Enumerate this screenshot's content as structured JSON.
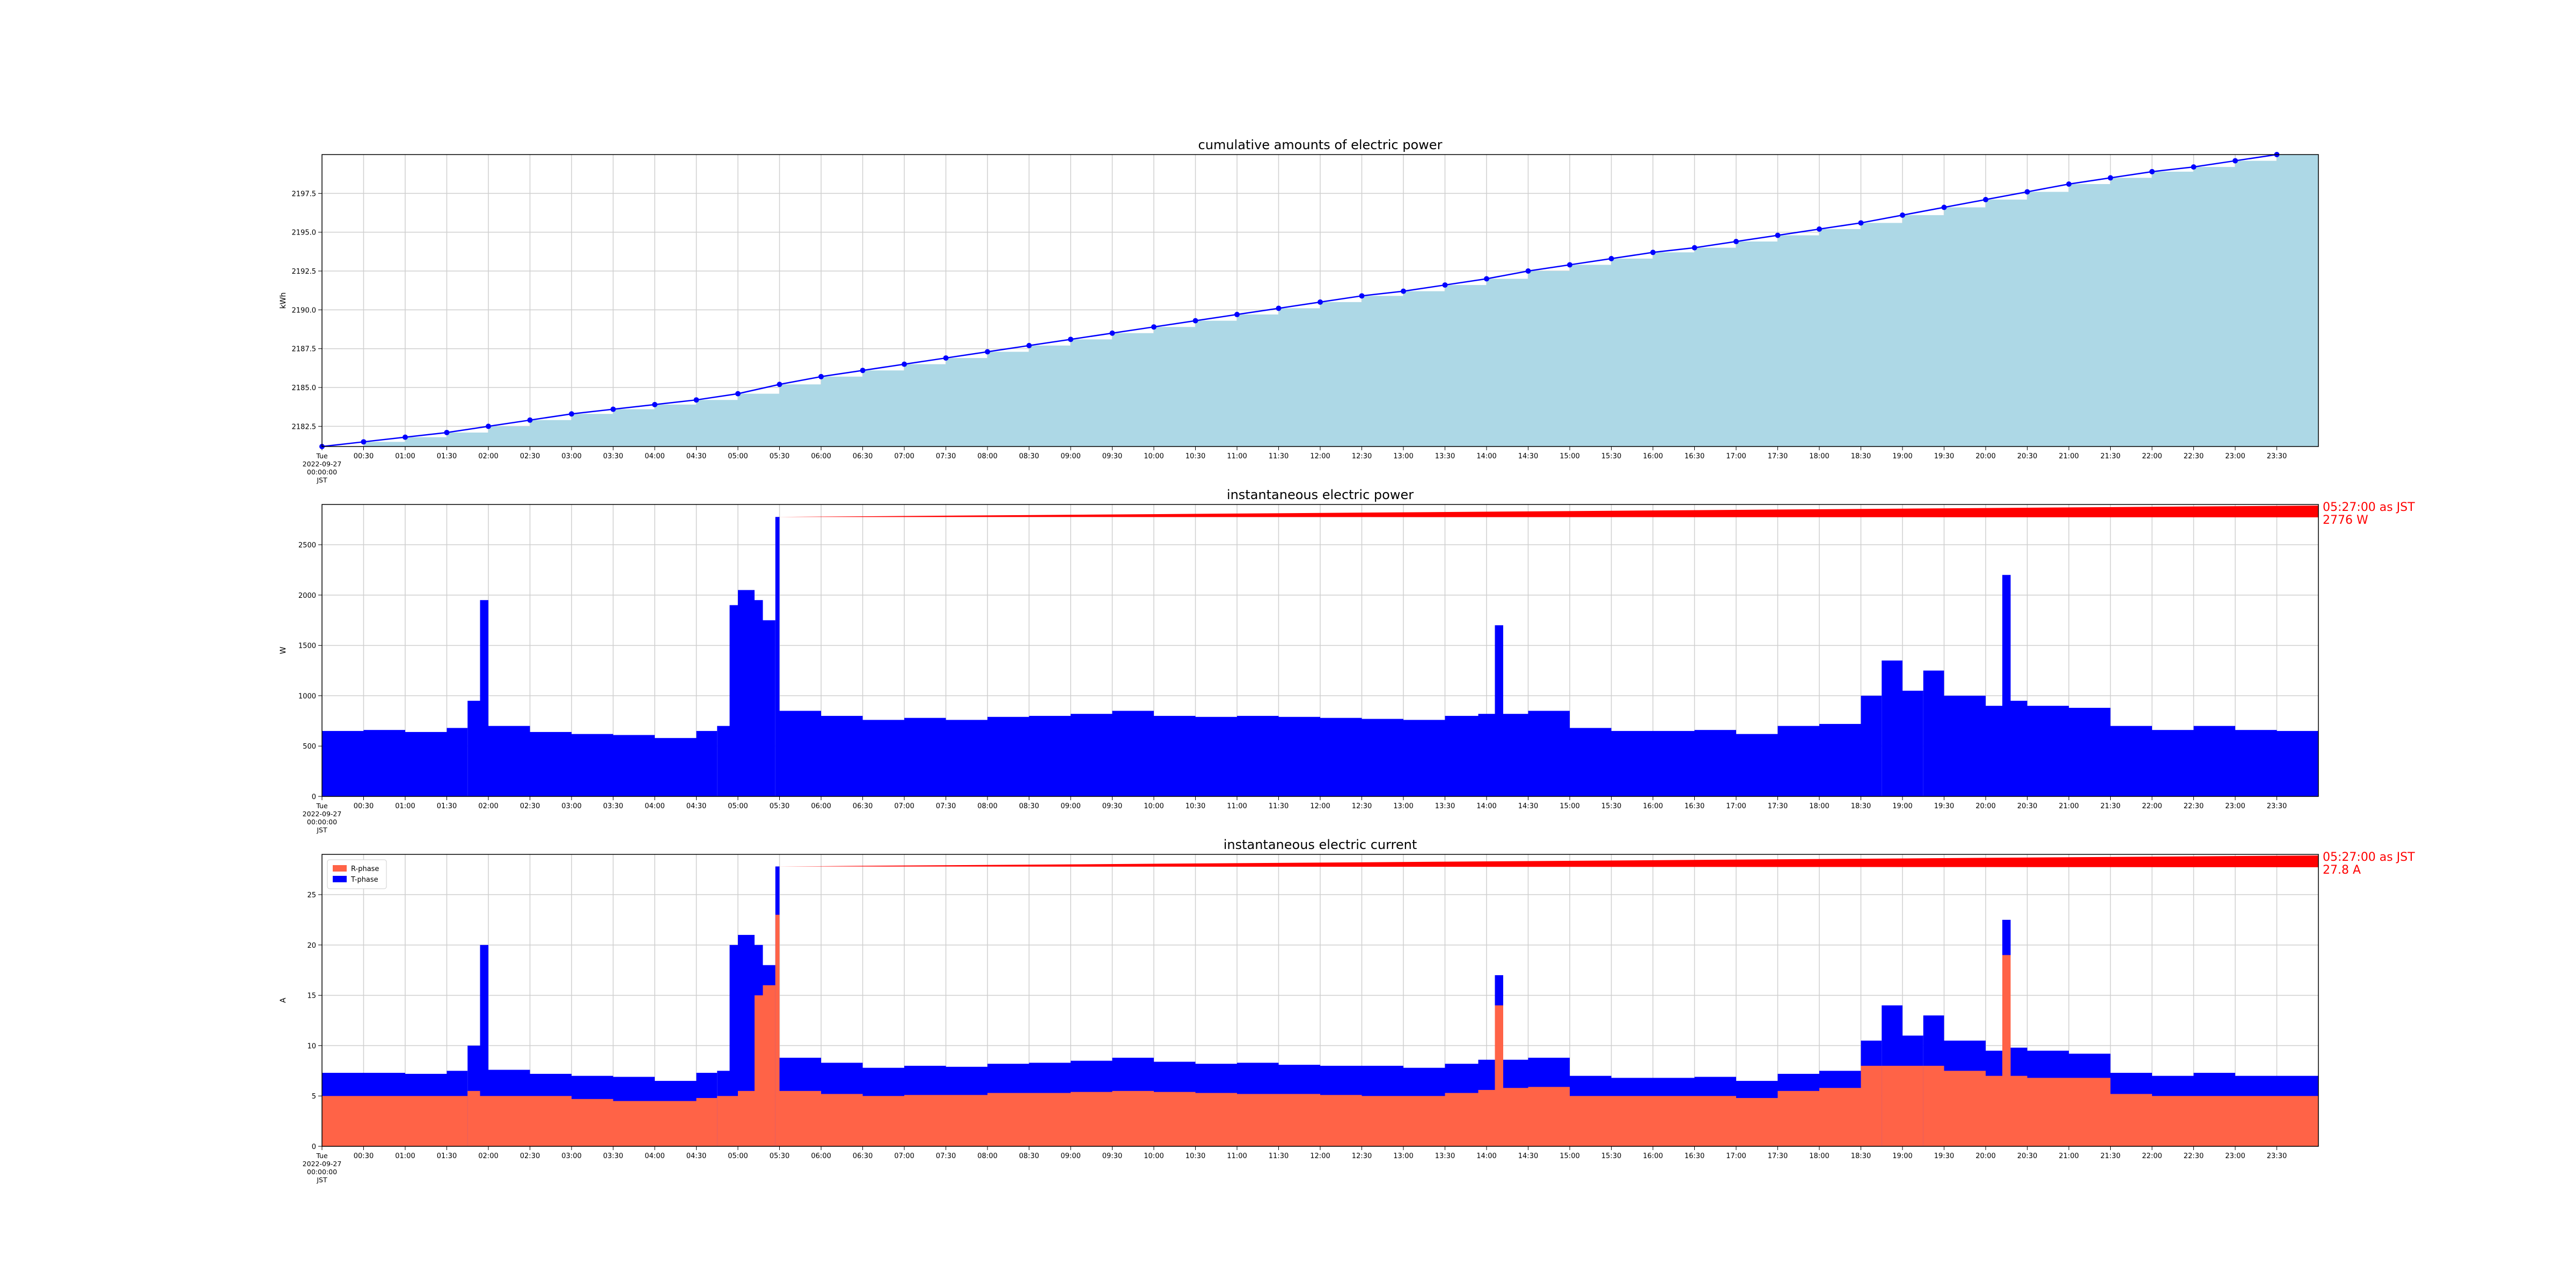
{
  "chart_data": [
    {
      "type": "area",
      "title": "cumulative amounts of electric power",
      "xlabel": "",
      "ylabel": "kWh",
      "x_first_tick": [
        "Tue",
        "2022-09-27",
        "00:00:00",
        "JST"
      ],
      "x_ticks": [
        "00:30",
        "01:00",
        "01:30",
        "02:00",
        "02:30",
        "03:00",
        "03:30",
        "04:00",
        "04:30",
        "05:00",
        "05:30",
        "06:00",
        "06:30",
        "07:00",
        "07:30",
        "08:00",
        "08:30",
        "09:00",
        "09:30",
        "10:00",
        "10:30",
        "11:00",
        "11:30",
        "12:00",
        "12:30",
        "13:00",
        "13:30",
        "14:00",
        "14:30",
        "15:00",
        "15:30",
        "16:00",
        "16:30",
        "17:00",
        "17:30",
        "18:00",
        "18:30",
        "19:00",
        "19:30",
        "20:00",
        "20:30",
        "21:00",
        "21:30",
        "22:00",
        "22:30",
        "23:00",
        "23:30"
      ],
      "xlim_hours": [
        0,
        24
      ],
      "y_ticks": [
        "2182.5",
        "2185.0",
        "2187.5",
        "2190.0",
        "2192.5",
        "2195.0",
        "2197.5"
      ],
      "ylim": [
        2181.2,
        2200.0
      ],
      "grid": true,
      "fill_color": "#add8e6",
      "line_color": "#0000ff",
      "series": [
        {
          "x_hours": [
            0.0,
            0.5,
            1.0,
            1.5,
            2.0,
            2.5,
            3.0,
            3.5,
            4.0,
            4.5,
            5.0,
            5.5,
            6.0,
            6.5,
            7.0,
            7.5,
            8.0,
            8.5,
            9.0,
            9.5,
            10.0,
            10.5,
            11.0,
            11.5,
            12.0,
            12.5,
            13.0,
            13.5,
            14.0,
            14.5,
            15.0,
            15.5,
            16.0,
            16.5,
            17.0,
            17.5,
            18.0,
            18.5,
            19.0,
            19.5,
            20.0,
            20.5,
            21.0,
            21.5,
            22.0,
            22.5,
            23.0,
            23.5
          ],
          "values": [
            2181.2,
            2181.5,
            2181.8,
            2182.1,
            2182.5,
            2182.9,
            2183.3,
            2183.6,
            2183.9,
            2184.2,
            2184.6,
            2185.2,
            2185.7,
            2186.1,
            2186.5,
            2186.9,
            2187.3,
            2187.7,
            2188.1,
            2188.5,
            2188.9,
            2189.3,
            2189.7,
            2190.1,
            2190.5,
            2190.9,
            2191.2,
            2191.6,
            2192.0,
            2192.5,
            2192.9,
            2193.3,
            2193.7,
            2194.0,
            2194.4,
            2194.8,
            2195.2,
            2195.6,
            2196.1,
            2196.6,
            2197.1,
            2197.6,
            2198.1,
            2198.5,
            2198.9,
            2199.2,
            2199.6,
            2200.0
          ]
        }
      ]
    },
    {
      "type": "bar",
      "title": "instantaneous electric power",
      "xlabel": "",
      "ylabel": "W",
      "x_first_tick": [
        "Tue",
        "2022-09-27",
        "00:00:00",
        "JST"
      ],
      "x_ticks": [
        "00:30",
        "01:00",
        "01:30",
        "02:00",
        "02:30",
        "03:00",
        "03:30",
        "04:00",
        "04:30",
        "05:00",
        "05:30",
        "06:00",
        "06:30",
        "07:00",
        "07:30",
        "08:00",
        "08:30",
        "09:00",
        "09:30",
        "10:00",
        "10:30",
        "11:00",
        "11:30",
        "12:00",
        "12:30",
        "13:00",
        "13:30",
        "14:00",
        "14:30",
        "15:00",
        "15:30",
        "16:00",
        "16:30",
        "17:00",
        "17:30",
        "18:00",
        "18:30",
        "19:00",
        "19:30",
        "20:00",
        "20:30",
        "21:00",
        "21:30",
        "22:00",
        "22:30",
        "23:00",
        "23:30"
      ],
      "xlim_hours": [
        0,
        24
      ],
      "y_ticks": [
        "0",
        "500",
        "1000",
        "1500",
        "2000",
        "2500"
      ],
      "ylim": [
        0,
        2900
      ],
      "grid": true,
      "bar_color": "#0000ff",
      "series": [
        {
          "x_hours": [
            0.0,
            0.5,
            1.0,
            1.5,
            1.75,
            1.9,
            2.0,
            2.5,
            3.0,
            3.5,
            4.0,
            4.5,
            4.75,
            4.9,
            5.0,
            5.2,
            5.3,
            5.45,
            5.5,
            6.0,
            6.5,
            7.0,
            7.5,
            8.0,
            8.5,
            9.0,
            9.5,
            10.0,
            10.5,
            11.0,
            11.5,
            12.0,
            12.5,
            13.0,
            13.5,
            13.9,
            14.1,
            14.2,
            14.5,
            15.0,
            15.5,
            16.0,
            16.5,
            17.0,
            17.5,
            18.0,
            18.5,
            18.75,
            19.0,
            19.25,
            19.5,
            20.0,
            20.2,
            20.3,
            20.5,
            21.0,
            21.5,
            22.0,
            22.5,
            23.0,
            23.5
          ],
          "values": [
            650,
            660,
            640,
            680,
            950,
            1950,
            700,
            640,
            620,
            610,
            580,
            650,
            700,
            1900,
            2050,
            1950,
            1750,
            2776,
            850,
            800,
            760,
            780,
            760,
            790,
            800,
            820,
            850,
            800,
            790,
            800,
            790,
            780,
            770,
            760,
            800,
            820,
            1700,
            820,
            850,
            680,
            650,
            650,
            660,
            620,
            700,
            720,
            1000,
            1350,
            1050,
            1250,
            1000,
            900,
            2200,
            950,
            900,
            880,
            700,
            660,
            700,
            660,
            650
          ]
        }
      ],
      "annotation": {
        "lines": [
          "05:27:00 as JST",
          "2776 W"
        ],
        "x_hours": 5.45,
        "value": 2776
      }
    },
    {
      "type": "bar",
      "title": "instantaneous electric current",
      "xlabel": "",
      "ylabel": "A",
      "x_first_tick": [
        "Tue",
        "2022-09-27",
        "00:00:00",
        "JST"
      ],
      "x_ticks": [
        "00:30",
        "01:00",
        "01:30",
        "02:00",
        "02:30",
        "03:00",
        "03:30",
        "04:00",
        "04:30",
        "05:00",
        "05:30",
        "06:00",
        "06:30",
        "07:00",
        "07:30",
        "08:00",
        "08:30",
        "09:00",
        "09:30",
        "10:00",
        "10:30",
        "11:00",
        "11:30",
        "12:00",
        "12:30",
        "13:00",
        "13:30",
        "14:00",
        "14:30",
        "15:00",
        "15:30",
        "16:00",
        "16:30",
        "17:00",
        "17:30",
        "18:00",
        "18:30",
        "19:00",
        "19:30",
        "20:00",
        "20:30",
        "21:00",
        "21:30",
        "22:00",
        "22:30",
        "23:00",
        "23:30"
      ],
      "xlim_hours": [
        0,
        24
      ],
      "y_ticks": [
        "0",
        "5",
        "10",
        "15",
        "20",
        "25"
      ],
      "ylim": [
        0,
        29
      ],
      "grid": true,
      "legend": {
        "placement": "top-left",
        "entries": [
          {
            "name": "R-phase",
            "color": "#ff6347"
          },
          {
            "name": "T-phase",
            "color": "#0000ff"
          }
        ]
      },
      "series": [
        {
          "name": "R-phase",
          "color": "#ff6347",
          "x_hours": [
            0.0,
            0.5,
            1.0,
            1.5,
            1.75,
            1.9,
            2.0,
            2.5,
            3.0,
            3.5,
            4.0,
            4.5,
            4.75,
            4.9,
            5.0,
            5.2,
            5.3,
            5.45,
            5.5,
            6.0,
            6.5,
            7.0,
            7.5,
            8.0,
            8.5,
            9.0,
            9.5,
            10.0,
            10.5,
            11.0,
            11.5,
            12.0,
            12.5,
            13.0,
            13.5,
            13.9,
            14.1,
            14.2,
            14.5,
            15.0,
            15.5,
            16.0,
            16.5,
            17.0,
            17.5,
            18.0,
            18.5,
            18.75,
            19.0,
            19.25,
            19.5,
            20.0,
            20.2,
            20.3,
            20.5,
            21.0,
            21.5,
            22.0,
            22.5,
            23.0,
            23.5
          ],
          "values": [
            5.0,
            5.0,
            5.0,
            5.0,
            5.5,
            5.0,
            5.0,
            5.0,
            4.7,
            4.5,
            4.5,
            4.8,
            5.0,
            5.0,
            5.5,
            15.0,
            16.0,
            23.0,
            5.5,
            5.2,
            5.0,
            5.1,
            5.1,
            5.3,
            5.3,
            5.4,
            5.5,
            5.4,
            5.3,
            5.2,
            5.2,
            5.1,
            5.0,
            5.0,
            5.3,
            5.6,
            14.0,
            5.8,
            5.9,
            5.0,
            5.0,
            5.0,
            5.0,
            4.8,
            5.5,
            5.8,
            8.0,
            8.0,
            8.0,
            8.0,
            7.5,
            7.0,
            19.0,
            7.0,
            6.8,
            6.8,
            5.2,
            5.0,
            5.0,
            5.0,
            5.0
          ]
        },
        {
          "name": "T-phase",
          "color": "#0000ff",
          "x_hours": [
            0.0,
            0.5,
            1.0,
            1.5,
            1.75,
            1.9,
            2.0,
            2.5,
            3.0,
            3.5,
            4.0,
            4.5,
            4.75,
            4.9,
            5.0,
            5.2,
            5.3,
            5.45,
            5.5,
            6.0,
            6.5,
            7.0,
            7.5,
            8.0,
            8.5,
            9.0,
            9.5,
            10.0,
            10.5,
            11.0,
            11.5,
            12.0,
            12.5,
            13.0,
            13.5,
            13.9,
            14.1,
            14.2,
            14.5,
            15.0,
            15.5,
            16.0,
            16.5,
            17.0,
            17.5,
            18.0,
            18.5,
            18.75,
            19.0,
            19.25,
            19.5,
            20.0,
            20.2,
            20.3,
            20.5,
            21.0,
            21.5,
            22.0,
            22.5,
            23.0,
            23.5
          ],
          "values": [
            7.3,
            7.3,
            7.2,
            7.5,
            10.0,
            20.0,
            7.6,
            7.2,
            7.0,
            6.9,
            6.5,
            7.3,
            7.5,
            20.0,
            21.0,
            20.0,
            18.0,
            27.8,
            8.8,
            8.3,
            7.8,
            8.0,
            7.9,
            8.2,
            8.3,
            8.5,
            8.8,
            8.4,
            8.2,
            8.3,
            8.1,
            8.0,
            8.0,
            7.8,
            8.2,
            8.6,
            17.0,
            8.6,
            8.8,
            7.0,
            6.8,
            6.8,
            6.9,
            6.5,
            7.2,
            7.5,
            10.5,
            14.0,
            11.0,
            13.0,
            10.5,
            9.5,
            22.5,
            9.8,
            9.5,
            9.2,
            7.3,
            7.0,
            7.3,
            7.0,
            7.0
          ]
        }
      ],
      "annotation": {
        "lines": [
          "05:27:00 as JST",
          "27.8 A"
        ],
        "x_hours": 5.45,
        "value": 27.8
      }
    }
  ]
}
